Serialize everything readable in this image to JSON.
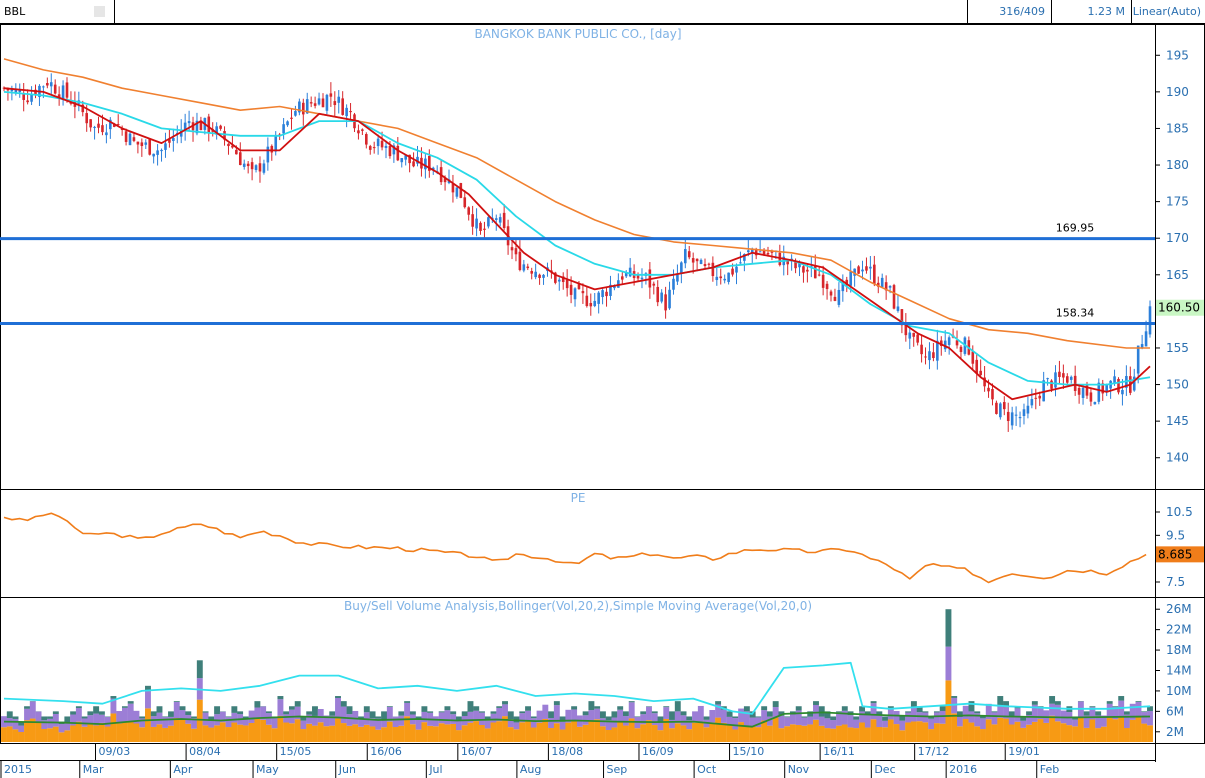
{
  "toolbar": {
    "symbol": "BBL",
    "position": "316/409",
    "volume": "1.23 M",
    "scale": "Linear(Auto)"
  },
  "colors": {
    "up": "#2b7fd9",
    "down": "#d7262b",
    "ma_short": "#d01010",
    "ma_mid": "#29d9e8",
    "ma_long": "#f08030",
    "hline": "#1f6fd6",
    "pe": "#f07d1a",
    "vol_buy": "#f79a14",
    "vol_sell": "#9c7ed6",
    "vol_other": "#3f7f7a",
    "bb_upper": "#33e0ee",
    "vol_sma": "#2e8a2e"
  },
  "chart_data": [
    {
      "type": "candlestick",
      "title": "BANGKOK BANK PUBLIC CO., [day]",
      "ylim": [
        136,
        199
      ],
      "y_ticks": [
        140,
        145,
        150,
        155,
        160,
        165,
        170,
        175,
        180,
        185,
        190,
        195
      ],
      "last_value": "160.50",
      "horizontal_lines": [
        {
          "value": 169.95,
          "label": "169.95"
        },
        {
          "value": 158.34,
          "label": "158.34"
        }
      ],
      "close_path": [
        [
          0,
          190.5
        ],
        [
          6,
          189.5
        ],
        [
          11,
          191.5
        ],
        [
          18,
          188.5
        ],
        [
          23,
          185
        ],
        [
          28,
          186
        ],
        [
          33,
          183
        ],
        [
          40,
          182
        ],
        [
          47,
          186
        ],
        [
          53,
          185
        ],
        [
          58,
          182.5
        ],
        [
          63,
          178.5
        ],
        [
          69,
          183
        ],
        [
          74,
          187.5
        ],
        [
          78,
          188.5
        ],
        [
          83,
          189.5
        ],
        [
          88,
          187
        ],
        [
          93,
          183
        ],
        [
          99,
          182
        ],
        [
          104,
          180
        ],
        [
          109,
          180
        ],
        [
          116,
          176
        ],
        [
          121,
          170.5
        ],
        [
          125,
          173
        ],
        [
          130,
          167
        ],
        [
          134,
          166
        ],
        [
          139,
          165
        ],
        [
          145,
          162
        ],
        [
          150,
          161.5
        ],
        [
          157,
          165
        ],
        [
          163,
          164.5
        ],
        [
          168,
          161
        ],
        [
          173,
          167.5
        ],
        [
          178,
          165.5
        ],
        [
          184,
          165
        ],
        [
          190,
          168.5
        ],
        [
          196,
          167.5
        ],
        [
          201,
          166
        ],
        [
          207,
          165
        ],
        [
          212,
          162
        ],
        [
          218,
          166.5
        ],
        [
          225,
          162.5
        ],
        [
          230,
          156
        ],
        [
          234,
          153.5
        ],
        [
          240,
          156.5
        ],
        [
          245,
          155
        ],
        [
          250,
          148
        ],
        [
          254,
          146
        ],
        [
          259,
          145.5
        ],
        [
          264,
          150
        ],
        [
          270,
          151
        ],
        [
          276,
          148.5
        ],
        [
          281,
          150
        ],
        [
          286,
          150
        ],
        [
          291,
          160.5
        ]
      ],
      "ma_short": [
        [
          0,
          190.5
        ],
        [
          10,
          190
        ],
        [
          20,
          188
        ],
        [
          30,
          185
        ],
        [
          40,
          183
        ],
        [
          50,
          186
        ],
        [
          60,
          182
        ],
        [
          70,
          182
        ],
        [
          80,
          187
        ],
        [
          90,
          186
        ],
        [
          100,
          182
        ],
        [
          110,
          179
        ],
        [
          118,
          176
        ],
        [
          125,
          172
        ],
        [
          132,
          168
        ],
        [
          140,
          165
        ],
        [
          150,
          163
        ],
        [
          160,
          164
        ],
        [
          170,
          165
        ],
        [
          180,
          166
        ],
        [
          190,
          168
        ],
        [
          200,
          167
        ],
        [
          208,
          166
        ],
        [
          216,
          163
        ],
        [
          224,
          160
        ],
        [
          232,
          157
        ],
        [
          240,
          155
        ],
        [
          248,
          151
        ],
        [
          256,
          148
        ],
        [
          264,
          149
        ],
        [
          272,
          150
        ],
        [
          280,
          149
        ],
        [
          286,
          150
        ],
        [
          291,
          152.5
        ]
      ],
      "ma_mid": [
        [
          0,
          190
        ],
        [
          10,
          189.5
        ],
        [
          20,
          188.5
        ],
        [
          30,
          187
        ],
        [
          40,
          185
        ],
        [
          50,
          184.5
        ],
        [
          60,
          184
        ],
        [
          70,
          184
        ],
        [
          80,
          186
        ],
        [
          90,
          186
        ],
        [
          100,
          183
        ],
        [
          110,
          181
        ],
        [
          120,
          178
        ],
        [
          130,
          173
        ],
        [
          140,
          169
        ],
        [
          150,
          166.5
        ],
        [
          160,
          165
        ],
        [
          170,
          165
        ],
        [
          180,
          166
        ],
        [
          190,
          166.5
        ],
        [
          200,
          167
        ],
        [
          210,
          165
        ],
        [
          220,
          161
        ],
        [
          230,
          158
        ],
        [
          240,
          157
        ],
        [
          250,
          153
        ],
        [
          260,
          150.5
        ],
        [
          270,
          150
        ],
        [
          280,
          150
        ],
        [
          291,
          151
        ]
      ],
      "ma_long": [
        [
          0,
          194.5
        ],
        [
          10,
          193
        ],
        [
          20,
          192
        ],
        [
          30,
          190.5
        ],
        [
          40,
          189.5
        ],
        [
          50,
          188.5
        ],
        [
          60,
          187.5
        ],
        [
          70,
          188
        ],
        [
          80,
          187
        ],
        [
          90,
          186
        ],
        [
          100,
          185
        ],
        [
          110,
          183
        ],
        [
          120,
          181
        ],
        [
          130,
          178
        ],
        [
          140,
          175
        ],
        [
          150,
          172.5
        ],
        [
          160,
          170.5
        ],
        [
          170,
          169.5
        ],
        [
          180,
          169
        ],
        [
          190,
          168.5
        ],
        [
          200,
          168
        ],
        [
          210,
          167
        ],
        [
          220,
          164
        ],
        [
          230,
          161.5
        ],
        [
          240,
          159
        ],
        [
          250,
          157.5
        ],
        [
          260,
          157
        ],
        [
          270,
          156
        ],
        [
          285,
          155
        ],
        [
          291,
          155
        ]
      ]
    },
    {
      "type": "line",
      "title": "PE",
      "ylim": [
        6.9,
        11.4
      ],
      "y_ticks": [
        7.5,
        9.5,
        10.5
      ],
      "last_value": "8.685",
      "values": [
        [
          0,
          10.3
        ],
        [
          5,
          10.1
        ],
        [
          10,
          10.4
        ],
        [
          15,
          10.3
        ],
        [
          20,
          9.5
        ],
        [
          25,
          9.6
        ],
        [
          30,
          9.5
        ],
        [
          35,
          9.3
        ],
        [
          40,
          9.6
        ],
        [
          45,
          9.8
        ],
        [
          50,
          10
        ],
        [
          55,
          9.7
        ],
        [
          60,
          9.4
        ],
        [
          65,
          9.7
        ],
        [
          70,
          9.5
        ],
        [
          75,
          9.2
        ],
        [
          80,
          9.1
        ],
        [
          90,
          9.0
        ],
        [
          100,
          8.95
        ],
        [
          110,
          8.8
        ],
        [
          120,
          8.6
        ],
        [
          125,
          8.3
        ],
        [
          130,
          8.7
        ],
        [
          135,
          8.6
        ],
        [
          140,
          8.45
        ],
        [
          145,
          8.2
        ],
        [
          150,
          8.7
        ],
        [
          155,
          8.5
        ],
        [
          160,
          8.6
        ],
        [
          165,
          8.75
        ],
        [
          170,
          8.5
        ],
        [
          175,
          8.6
        ],
        [
          180,
          8.5
        ],
        [
          185,
          8.75
        ],
        [
          190,
          8.9
        ],
        [
          195,
          8.9
        ],
        [
          200,
          8.85
        ],
        [
          205,
          8.8
        ],
        [
          210,
          8.85
        ],
        [
          215,
          8.9
        ],
        [
          220,
          8.5
        ],
        [
          225,
          8.2
        ],
        [
          230,
          7.6
        ],
        [
          235,
          8.3
        ],
        [
          240,
          8.1
        ],
        [
          245,
          8.0
        ],
        [
          250,
          7.5
        ],
        [
          255,
          7.9
        ],
        [
          260,
          7.8
        ],
        [
          265,
          7.7
        ],
        [
          270,
          8.0
        ],
        [
          275,
          8.0
        ],
        [
          280,
          7.9
        ],
        [
          285,
          8.3
        ],
        [
          290,
          8.685
        ]
      ]
    },
    {
      "type": "bar",
      "title": "Buy/Sell Volume Analysis,Bollinger(Vol,20,2),Simple Moving Average(Vol,20,0)",
      "ylim": [
        0,
        28
      ],
      "y_ticks": [
        "2M",
        "6M",
        "10M",
        "14M",
        "18M",
        "22M",
        "26M"
      ],
      "y_tick_values": [
        2,
        6,
        10,
        14,
        18,
        22,
        26
      ],
      "volume_total": [
        5,
        6,
        5,
        4,
        7,
        8,
        6,
        5,
        5,
        6,
        4,
        5,
        6,
        7,
        5,
        6,
        7,
        6,
        5,
        9,
        6,
        7,
        8,
        6,
        5,
        11,
        6,
        7,
        5,
        6,
        8,
        7,
        6,
        5,
        16,
        6,
        5,
        7,
        6,
        5,
        7,
        6,
        5,
        6,
        8,
        7,
        6,
        5,
        9,
        6,
        7,
        8,
        5,
        6,
        7,
        6,
        5,
        6,
        9,
        8,
        7,
        6,
        5,
        7,
        6,
        5,
        6,
        7,
        5,
        6,
        8,
        6,
        5,
        7,
        6,
        5,
        6,
        7,
        6,
        5,
        6,
        8,
        7,
        6,
        5,
        6,
        7,
        8,
        6,
        5,
        6,
        7,
        5,
        6,
        7,
        6,
        8,
        5,
        6,
        7,
        5,
        6,
        8,
        7,
        6,
        5,
        6,
        7,
        6,
        8,
        5,
        6,
        7,
        6,
        5,
        7,
        6,
        8,
        6,
        5,
        6,
        7,
        5,
        6,
        8,
        7,
        6,
        5,
        6,
        7,
        6,
        5,
        7,
        6,
        8,
        6,
        5,
        6,
        7,
        5,
        6,
        8,
        7,
        6,
        5,
        6,
        7,
        6,
        5,
        7,
        6,
        8,
        6,
        5,
        7,
        6,
        5,
        6,
        8,
        7,
        6,
        5,
        6,
        7,
        26,
        9,
        6,
        7,
        8,
        6,
        5,
        7,
        6,
        9,
        8,
        6,
        7,
        5,
        6,
        8,
        7,
        6,
        9,
        8,
        6,
        7,
        5,
        8,
        6,
        7,
        6,
        5,
        8,
        7,
        9,
        6,
        7,
        8,
        6,
        7
      ],
      "bb_upper": [
        [
          0,
          8.5
        ],
        [
          15,
          8
        ],
        [
          25,
          7.5
        ],
        [
          35,
          10
        ],
        [
          45,
          10.5
        ],
        [
          55,
          10
        ],
        [
          65,
          11
        ],
        [
          75,
          13
        ],
        [
          85,
          13
        ],
        [
          95,
          10.5
        ],
        [
          105,
          11
        ],
        [
          115,
          10
        ],
        [
          125,
          11
        ],
        [
          135,
          9
        ],
        [
          145,
          9.5
        ],
        [
          155,
          9
        ],
        [
          165,
          8
        ],
        [
          175,
          8.5
        ],
        [
          185,
          6
        ],
        [
          190,
          5.5
        ],
        [
          198,
          14.5
        ],
        [
          208,
          15
        ],
        [
          215,
          15.5
        ],
        [
          218,
          7
        ],
        [
          225,
          6.5
        ],
        [
          235,
          7
        ],
        [
          245,
          7.5
        ],
        [
          255,
          7
        ],
        [
          270,
          6.5
        ],
        [
          280,
          6.5
        ],
        [
          291,
          7
        ]
      ],
      "vol_sma": [
        [
          0,
          4
        ],
        [
          15,
          3.8
        ],
        [
          25,
          3.5
        ],
        [
          35,
          4.2
        ],
        [
          45,
          4.5
        ],
        [
          55,
          4.2
        ],
        [
          65,
          4.7
        ],
        [
          75,
          5
        ],
        [
          85,
          4.8
        ],
        [
          95,
          4.3
        ],
        [
          105,
          4.5
        ],
        [
          115,
          4.2
        ],
        [
          125,
          4.4
        ],
        [
          135,
          4.1
        ],
        [
          145,
          4.2
        ],
        [
          155,
          4
        ],
        [
          165,
          3.9
        ],
        [
          175,
          4
        ],
        [
          185,
          3.3
        ],
        [
          190,
          3
        ],
        [
          198,
          5.5
        ],
        [
          208,
          5.8
        ],
        [
          215,
          5.5
        ],
        [
          225,
          5.2
        ],
        [
          235,
          5
        ],
        [
          245,
          5.2
        ],
        [
          255,
          5
        ],
        [
          270,
          4.8
        ],
        [
          291,
          5
        ]
      ]
    }
  ],
  "x_axis": {
    "date_labels": [
      "09/03",
      "08/04",
      "15/05",
      "16/06",
      "16/07",
      "18/08",
      "16/09",
      "15/10",
      "16/11",
      "17/12",
      "19/01"
    ],
    "month_labels": [
      "2015",
      "Mar",
      "Apr",
      "May",
      "Jun",
      "Jul",
      "Aug",
      "Sep",
      "Oct",
      "Nov",
      "Dec",
      "2016",
      "Feb"
    ]
  }
}
